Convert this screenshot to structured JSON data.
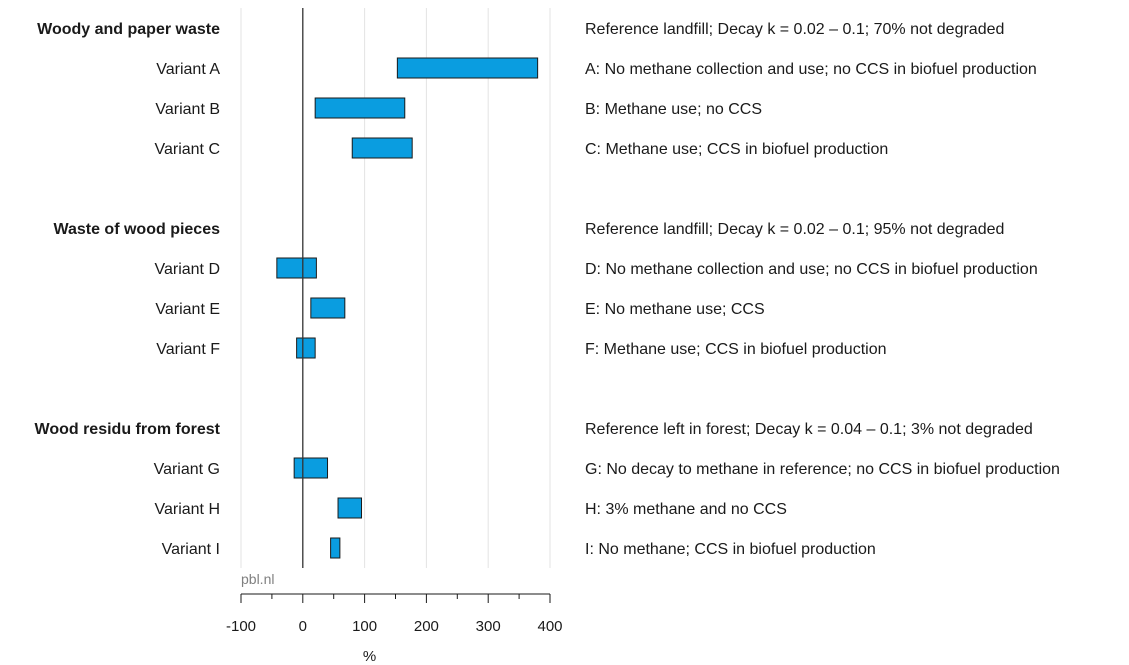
{
  "chart_data": {
    "type": "bar",
    "orientation": "horizontal-range",
    "xlim": [
      -100,
      400
    ],
    "x_ticks": [
      "-100",
      "0",
      "100",
      "200",
      "300",
      "400"
    ],
    "x_tick_values": [
      -100,
      0,
      100,
      200,
      300,
      400
    ],
    "minor_tick_step": 50,
    "xlabel": "%",
    "source": "pbl.nl",
    "grid": "vertical",
    "bar_color": "#0a9de0",
    "groups": [
      {
        "title": "Woody and paper waste",
        "description": "Reference landfill; Decay k = 0.02 – 0.1; 70% not degraded",
        "variants": [
          {
            "label": "Variant A",
            "low": 153,
            "high": 380,
            "description": "A: No methane collection and use;  no CCS in biofuel production"
          },
          {
            "label": "Variant B",
            "low": 20,
            "high": 165,
            "description": "B: Methane use; no CCS"
          },
          {
            "label": "Variant C",
            "low": 80,
            "high": 177,
            "description": "C: Methane use; CCS in biofuel production"
          }
        ]
      },
      {
        "title": "Waste of wood pieces",
        "description": "Reference landfill; Decay k = 0.02 – 0.1; 95% not degraded",
        "variants": [
          {
            "label": "Variant D",
            "low": -42,
            "high": 22,
            "description": "D: No methane collection and use;  no CCS in biofuel production"
          },
          {
            "label": "Variant E",
            "low": 13,
            "high": 68,
            "description": "E: No methane use; CCS"
          },
          {
            "label": "Variant F",
            "low": -10,
            "high": 20,
            "description": "F: Methane use; CCS in biofuel production"
          }
        ]
      },
      {
        "title": "Wood residu from forest",
        "description": "Reference left in forest; Decay k = 0.04 – 0.1; 3% not degraded",
        "variants": [
          {
            "label": "Variant G",
            "low": -14,
            "high": 40,
            "description": "G: No decay to methane in reference; no CCS in biofuel production"
          },
          {
            "label": "Variant H",
            "low": 57,
            "high": 95,
            "description": "H: 3% methane and no CCS"
          },
          {
            "label": "Variant I",
            "low": 45,
            "high": 60,
            "description": "I: No methane;  CCS in biofuel production"
          }
        ]
      }
    ]
  }
}
